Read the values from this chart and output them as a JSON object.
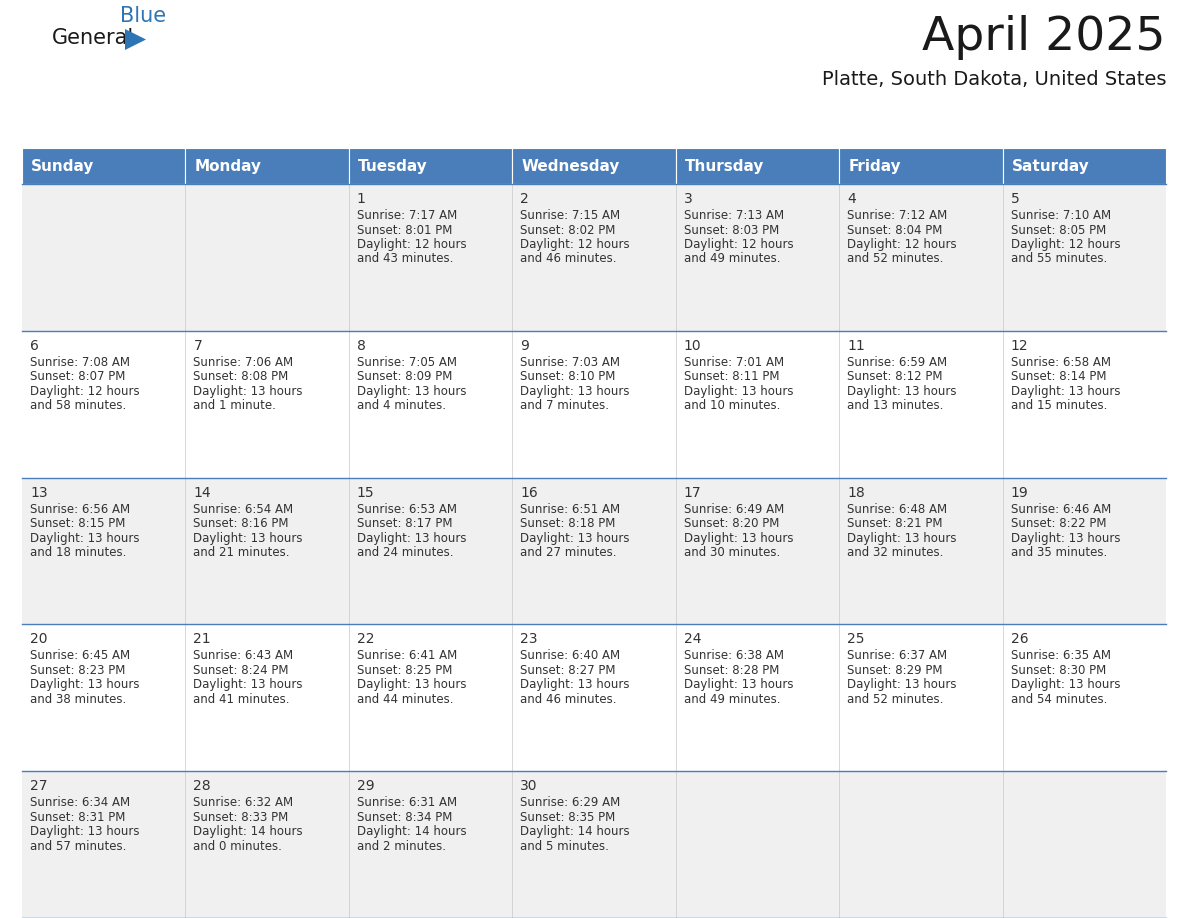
{
  "title": "April 2025",
  "subtitle": "Platte, South Dakota, United States",
  "header_color": "#4A7EBB",
  "header_text_color": "#FFFFFF",
  "cell_bg_even": "#F0F0F0",
  "cell_bg_odd": "#FFFFFF",
  "day_names": [
    "Sunday",
    "Monday",
    "Tuesday",
    "Wednesday",
    "Thursday",
    "Friday",
    "Saturday"
  ],
  "days": [
    {
      "date": 1,
      "col": 2,
      "row": 0,
      "sunrise": "7:17 AM",
      "sunset": "8:01 PM",
      "daylight": "12 hours",
      "daylight2": "and 43 minutes."
    },
    {
      "date": 2,
      "col": 3,
      "row": 0,
      "sunrise": "7:15 AM",
      "sunset": "8:02 PM",
      "daylight": "12 hours",
      "daylight2": "and 46 minutes."
    },
    {
      "date": 3,
      "col": 4,
      "row": 0,
      "sunrise": "7:13 AM",
      "sunset": "8:03 PM",
      "daylight": "12 hours",
      "daylight2": "and 49 minutes."
    },
    {
      "date": 4,
      "col": 5,
      "row": 0,
      "sunrise": "7:12 AM",
      "sunset": "8:04 PM",
      "daylight": "12 hours",
      "daylight2": "and 52 minutes."
    },
    {
      "date": 5,
      "col": 6,
      "row": 0,
      "sunrise": "7:10 AM",
      "sunset": "8:05 PM",
      "daylight": "12 hours",
      "daylight2": "and 55 minutes."
    },
    {
      "date": 6,
      "col": 0,
      "row": 1,
      "sunrise": "7:08 AM",
      "sunset": "8:07 PM",
      "daylight": "12 hours",
      "daylight2": "and 58 minutes."
    },
    {
      "date": 7,
      "col": 1,
      "row": 1,
      "sunrise": "7:06 AM",
      "sunset": "8:08 PM",
      "daylight": "13 hours",
      "daylight2": "and 1 minute."
    },
    {
      "date": 8,
      "col": 2,
      "row": 1,
      "sunrise": "7:05 AM",
      "sunset": "8:09 PM",
      "daylight": "13 hours",
      "daylight2": "and 4 minutes."
    },
    {
      "date": 9,
      "col": 3,
      "row": 1,
      "sunrise": "7:03 AM",
      "sunset": "8:10 PM",
      "daylight": "13 hours",
      "daylight2": "and 7 minutes."
    },
    {
      "date": 10,
      "col": 4,
      "row": 1,
      "sunrise": "7:01 AM",
      "sunset": "8:11 PM",
      "daylight": "13 hours",
      "daylight2": "and 10 minutes."
    },
    {
      "date": 11,
      "col": 5,
      "row": 1,
      "sunrise": "6:59 AM",
      "sunset": "8:12 PM",
      "daylight": "13 hours",
      "daylight2": "and 13 minutes."
    },
    {
      "date": 12,
      "col": 6,
      "row": 1,
      "sunrise": "6:58 AM",
      "sunset": "8:14 PM",
      "daylight": "13 hours",
      "daylight2": "and 15 minutes."
    },
    {
      "date": 13,
      "col": 0,
      "row": 2,
      "sunrise": "6:56 AM",
      "sunset": "8:15 PM",
      "daylight": "13 hours",
      "daylight2": "and 18 minutes."
    },
    {
      "date": 14,
      "col": 1,
      "row": 2,
      "sunrise": "6:54 AM",
      "sunset": "8:16 PM",
      "daylight": "13 hours",
      "daylight2": "and 21 minutes."
    },
    {
      "date": 15,
      "col": 2,
      "row": 2,
      "sunrise": "6:53 AM",
      "sunset": "8:17 PM",
      "daylight": "13 hours",
      "daylight2": "and 24 minutes."
    },
    {
      "date": 16,
      "col": 3,
      "row": 2,
      "sunrise": "6:51 AM",
      "sunset": "8:18 PM",
      "daylight": "13 hours",
      "daylight2": "and 27 minutes."
    },
    {
      "date": 17,
      "col": 4,
      "row": 2,
      "sunrise": "6:49 AM",
      "sunset": "8:20 PM",
      "daylight": "13 hours",
      "daylight2": "and 30 minutes."
    },
    {
      "date": 18,
      "col": 5,
      "row": 2,
      "sunrise": "6:48 AM",
      "sunset": "8:21 PM",
      "daylight": "13 hours",
      "daylight2": "and 32 minutes."
    },
    {
      "date": 19,
      "col": 6,
      "row": 2,
      "sunrise": "6:46 AM",
      "sunset": "8:22 PM",
      "daylight": "13 hours",
      "daylight2": "and 35 minutes."
    },
    {
      "date": 20,
      "col": 0,
      "row": 3,
      "sunrise": "6:45 AM",
      "sunset": "8:23 PM",
      "daylight": "13 hours",
      "daylight2": "and 38 minutes."
    },
    {
      "date": 21,
      "col": 1,
      "row": 3,
      "sunrise": "6:43 AM",
      "sunset": "8:24 PM",
      "daylight": "13 hours",
      "daylight2": "and 41 minutes."
    },
    {
      "date": 22,
      "col": 2,
      "row": 3,
      "sunrise": "6:41 AM",
      "sunset": "8:25 PM",
      "daylight": "13 hours",
      "daylight2": "and 44 minutes."
    },
    {
      "date": 23,
      "col": 3,
      "row": 3,
      "sunrise": "6:40 AM",
      "sunset": "8:27 PM",
      "daylight": "13 hours",
      "daylight2": "and 46 minutes."
    },
    {
      "date": 24,
      "col": 4,
      "row": 3,
      "sunrise": "6:38 AM",
      "sunset": "8:28 PM",
      "daylight": "13 hours",
      "daylight2": "and 49 minutes."
    },
    {
      "date": 25,
      "col": 5,
      "row": 3,
      "sunrise": "6:37 AM",
      "sunset": "8:29 PM",
      "daylight": "13 hours",
      "daylight2": "and 52 minutes."
    },
    {
      "date": 26,
      "col": 6,
      "row": 3,
      "sunrise": "6:35 AM",
      "sunset": "8:30 PM",
      "daylight": "13 hours",
      "daylight2": "and 54 minutes."
    },
    {
      "date": 27,
      "col": 0,
      "row": 4,
      "sunrise": "6:34 AM",
      "sunset": "8:31 PM",
      "daylight": "13 hours",
      "daylight2": "and 57 minutes."
    },
    {
      "date": 28,
      "col": 1,
      "row": 4,
      "sunrise": "6:32 AM",
      "sunset": "8:33 PM",
      "daylight": "14 hours",
      "daylight2": "and 0 minutes."
    },
    {
      "date": 29,
      "col": 2,
      "row": 4,
      "sunrise": "6:31 AM",
      "sunset": "8:34 PM",
      "daylight": "14 hours",
      "daylight2": "and 2 minutes."
    },
    {
      "date": 30,
      "col": 3,
      "row": 4,
      "sunrise": "6:29 AM",
      "sunset": "8:35 PM",
      "daylight": "14 hours",
      "daylight2": "and 5 minutes."
    }
  ],
  "num_rows": 5,
  "logo_color1": "#1a1a1a",
  "logo_color2": "#2E75B6",
  "triangle_color": "#2E75B6",
  "line_color": "#4A7EBB",
  "cell_text_color": "#333333",
  "date_text_color": "#333333",
  "header_font_size": 11,
  "day_font_size": 8.5,
  "date_font_size": 10,
  "title_font_size": 34,
  "subtitle_font_size": 14,
  "logo_font_size": 15
}
